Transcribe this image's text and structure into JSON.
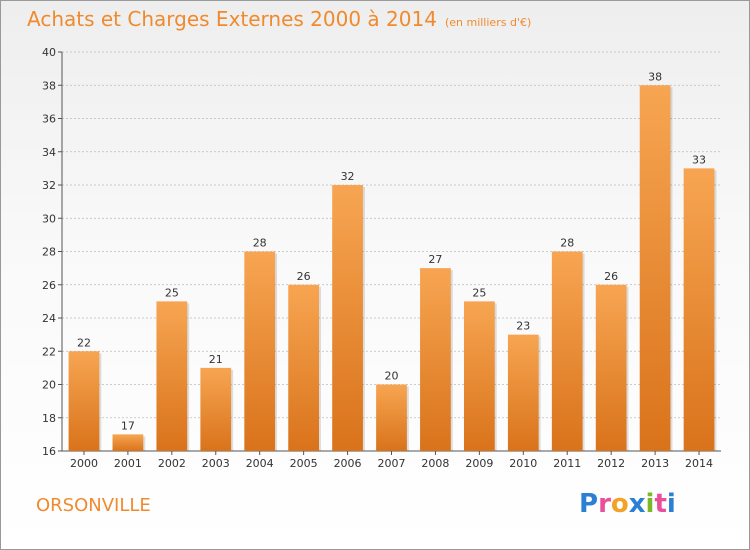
{
  "header": {
    "title": "Achats et Charges Externes 2000 à 2014",
    "subtitle": "(en milliers d'€)"
  },
  "footer": {
    "city": "ORSONVILLE",
    "logo_text": "Proxiti"
  },
  "colors": {
    "bar_light": "#f7a552",
    "bar_dark": "#d9731b",
    "accent": "#f08a2e",
    "grid": "#bbbbbb"
  },
  "chart_data": {
    "type": "bar",
    "categories": [
      "2000",
      "2001",
      "2002",
      "2003",
      "2004",
      "2005",
      "2006",
      "2007",
      "2008",
      "2009",
      "2010",
      "2011",
      "2012",
      "2013",
      "2014"
    ],
    "values": [
      22,
      17,
      25,
      21,
      28,
      26,
      32,
      20,
      27,
      25,
      23,
      28,
      26,
      38,
      33
    ],
    "title": "Achats et Charges Externes 2000 à 2014",
    "subtitle": "(en milliers d'€)",
    "ylim": [
      16,
      40
    ],
    "yticks": [
      16,
      18,
      20,
      22,
      24,
      26,
      28,
      30,
      32,
      34,
      36,
      38,
      40
    ],
    "grid": true
  }
}
